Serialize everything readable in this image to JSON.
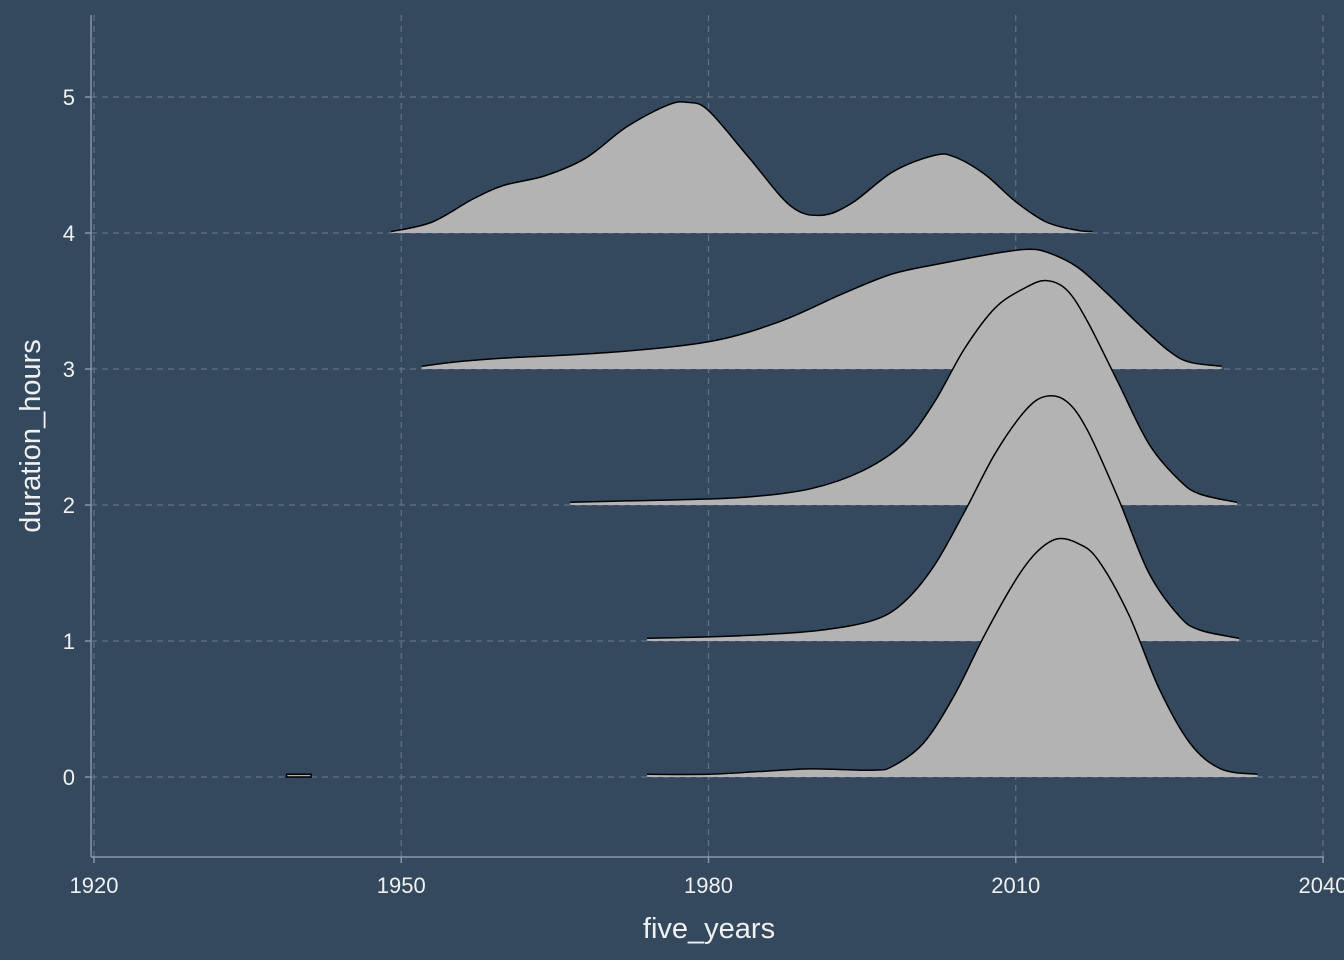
{
  "chart_data": {
    "type": "area",
    "subtype": "ridgeline-density",
    "xlabel": "five_years",
    "ylabel": "duration_hours",
    "xlim": [
      1920,
      2040
    ],
    "ylim": [
      -0.6,
      5.6
    ],
    "xticks": [
      1920,
      1950,
      1980,
      2010,
      2040
    ],
    "xtick_labels": [
      "1920",
      "1950",
      "1980",
      "2010",
      "2040"
    ],
    "yticks": [
      0,
      1,
      2,
      3,
      4,
      5
    ],
    "ytick_labels": [
      "0",
      "1",
      "2",
      "3",
      "4",
      "5"
    ],
    "grid": true,
    "legend": "none",
    "colors": {
      "background": "#34495e",
      "grid": "#5f7188",
      "axis": "#8a9aa8",
      "text": "#f0f0f0",
      "fill": "#b3b3b3",
      "outline": "#000000"
    },
    "series": [
      {
        "baseline": 0,
        "points": [
          [
            1938.8,
            0.02
          ],
          [
            1941.2,
            0.02
          ],
          [
            1941.2,
            0.0
          ],
          [
            1938.8,
            0.0
          ],
          [
            1974,
            0.02
          ],
          [
            1980,
            0.02
          ],
          [
            1985,
            0.04
          ],
          [
            1990,
            0.06
          ],
          [
            1996,
            0.05
          ],
          [
            1998,
            0.08
          ],
          [
            2001,
            0.25
          ],
          [
            2004,
            0.6
          ],
          [
            2007,
            1.05
          ],
          [
            2010,
            1.45
          ],
          [
            2012,
            1.65
          ],
          [
            2014,
            1.75
          ],
          [
            2016,
            1.72
          ],
          [
            2018,
            1.6
          ],
          [
            2021,
            1.2
          ],
          [
            2024,
            0.65
          ],
          [
            2027,
            0.25
          ],
          [
            2030,
            0.06
          ],
          [
            2033.6,
            0.02
          ]
        ]
      },
      {
        "baseline": 1,
        "points": [
          [
            1974,
            0.02
          ],
          [
            1980,
            0.03
          ],
          [
            1986,
            0.05
          ],
          [
            1991,
            0.08
          ],
          [
            1996,
            0.15
          ],
          [
            1999,
            0.28
          ],
          [
            2002,
            0.55
          ],
          [
            2005,
            0.95
          ],
          [
            2008,
            1.38
          ],
          [
            2011,
            1.7
          ],
          [
            2013,
            1.8
          ],
          [
            2015,
            1.76
          ],
          [
            2017,
            1.55
          ],
          [
            2020,
            1.05
          ],
          [
            2023,
            0.5
          ],
          [
            2026,
            0.18
          ],
          [
            2028,
            0.08
          ],
          [
            2031.8,
            0.02
          ]
        ]
      },
      {
        "baseline": 2,
        "points": [
          [
            1966.5,
            0.02
          ],
          [
            1972,
            0.03
          ],
          [
            1978,
            0.04
          ],
          [
            1984,
            0.06
          ],
          [
            1990,
            0.12
          ],
          [
            1995,
            0.25
          ],
          [
            1999,
            0.45
          ],
          [
            2002,
            0.75
          ],
          [
            2005,
            1.15
          ],
          [
            2008,
            1.45
          ],
          [
            2011,
            1.6
          ],
          [
            2013,
            1.65
          ],
          [
            2015,
            1.58
          ],
          [
            2017,
            1.35
          ],
          [
            2020,
            0.9
          ],
          [
            2023,
            0.45
          ],
          [
            2026,
            0.18
          ],
          [
            2028,
            0.08
          ],
          [
            2031.6,
            0.02
          ]
        ]
      },
      {
        "baseline": 3,
        "points": [
          [
            1952,
            0.02
          ],
          [
            1955,
            0.05
          ],
          [
            1960,
            0.08
          ],
          [
            1970,
            0.12
          ],
          [
            1980,
            0.2
          ],
          [
            1987,
            0.35
          ],
          [
            1993,
            0.55
          ],
          [
            1998,
            0.7
          ],
          [
            2003,
            0.78
          ],
          [
            2008,
            0.85
          ],
          [
            2011,
            0.88
          ],
          [
            2013,
            0.86
          ],
          [
            2016,
            0.75
          ],
          [
            2019,
            0.55
          ],
          [
            2022,
            0.33
          ],
          [
            2025,
            0.13
          ],
          [
            2027,
            0.05
          ],
          [
            2030.1,
            0.02
          ]
        ]
      },
      {
        "baseline": 4,
        "points": [
          [
            1949,
            0.01
          ],
          [
            1953,
            0.08
          ],
          [
            1957,
            0.25
          ],
          [
            1960,
            0.35
          ],
          [
            1964,
            0.42
          ],
          [
            1968,
            0.55
          ],
          [
            1972,
            0.78
          ],
          [
            1976,
            0.94
          ],
          [
            1978,
            0.96
          ],
          [
            1980,
            0.9
          ],
          [
            1984,
            0.55
          ],
          [
            1988,
            0.2
          ],
          [
            1991,
            0.13
          ],
          [
            1994,
            0.22
          ],
          [
            1998,
            0.45
          ],
          [
            2002,
            0.57
          ],
          [
            2004,
            0.56
          ],
          [
            2007,
            0.43
          ],
          [
            2010,
            0.23
          ],
          [
            2013,
            0.08
          ],
          [
            2016,
            0.02
          ],
          [
            2017.5,
            0.01
          ]
        ]
      }
    ]
  }
}
